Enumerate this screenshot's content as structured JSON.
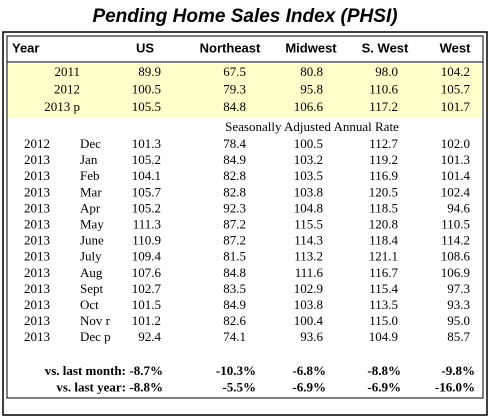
{
  "title": "Pending Home Sales Index (PHSI)",
  "table": {
    "header": [
      "Year",
      "US",
      "Northeast",
      "Midwest",
      "S. West",
      "West"
    ],
    "annual_rows": [
      [
        "2011",
        "89.9",
        "67.5",
        "80.8",
        "98.0",
        "104.2"
      ],
      [
        "2012",
        "100.5",
        "79.3",
        "95.8",
        "110.6",
        "105.7"
      ],
      [
        "2013 p",
        "105.5",
        "84.8",
        "106.6",
        "117.2",
        "101.7"
      ]
    ],
    "rate_note": "Seasonally Adjusted Annual Rate",
    "monthly_rows": [
      [
        "2012",
        "Dec",
        "101.3",
        "78.4",
        "100.5",
        "112.7",
        "102.0"
      ],
      [
        "2013",
        "Jan",
        "105.2",
        "84.9",
        "103.2",
        "119.2",
        "101.3"
      ],
      [
        "2013",
        "Feb",
        "104.1",
        "82.8",
        "103.5",
        "116.9",
        "101.4"
      ],
      [
        "2013",
        "Mar",
        "105.7",
        "82.8",
        "103.8",
        "120.5",
        "102.4"
      ],
      [
        "2013",
        "Apr",
        "105.2",
        "92.3",
        "104.8",
        "118.5",
        "94.6"
      ],
      [
        "2013",
        "May",
        "111.3",
        "87.2",
        "115.5",
        "120.8",
        "110.5"
      ],
      [
        "2013",
        "June",
        "110.9",
        "87.2",
        "114.3",
        "118.4",
        "114.2"
      ],
      [
        "2013",
        "July",
        "109.4",
        "81.5",
        "113.2",
        "121.1",
        "108.6"
      ],
      [
        "2013",
        "Aug",
        "107.6",
        "84.8",
        "111.6",
        "116.7",
        "106.9"
      ],
      [
        "2013",
        "Sept",
        "102.7",
        "83.5",
        "102.9",
        "115.4",
        "97.3"
      ],
      [
        "2013",
        "Oct",
        "101.5",
        "84.9",
        "103.8",
        "113.5",
        "93.3"
      ],
      [
        "2013",
        "Nov r",
        "101.2",
        "82.6",
        "100.4",
        "115.0",
        "95.0"
      ],
      [
        "2013",
        "Dec p",
        "92.4",
        "74.1",
        "93.6",
        "104.9",
        "85.7"
      ]
    ],
    "summary_rows": [
      [
        "vs. last month:",
        "-8.7%",
        "-10.3%",
        "-6.8%",
        "-8.8%",
        "-9.8%"
      ],
      [
        "vs. last year:",
        "-8.8%",
        "-5.5%",
        "-6.9%",
        "-6.9%",
        "-16.0%"
      ]
    ]
  }
}
